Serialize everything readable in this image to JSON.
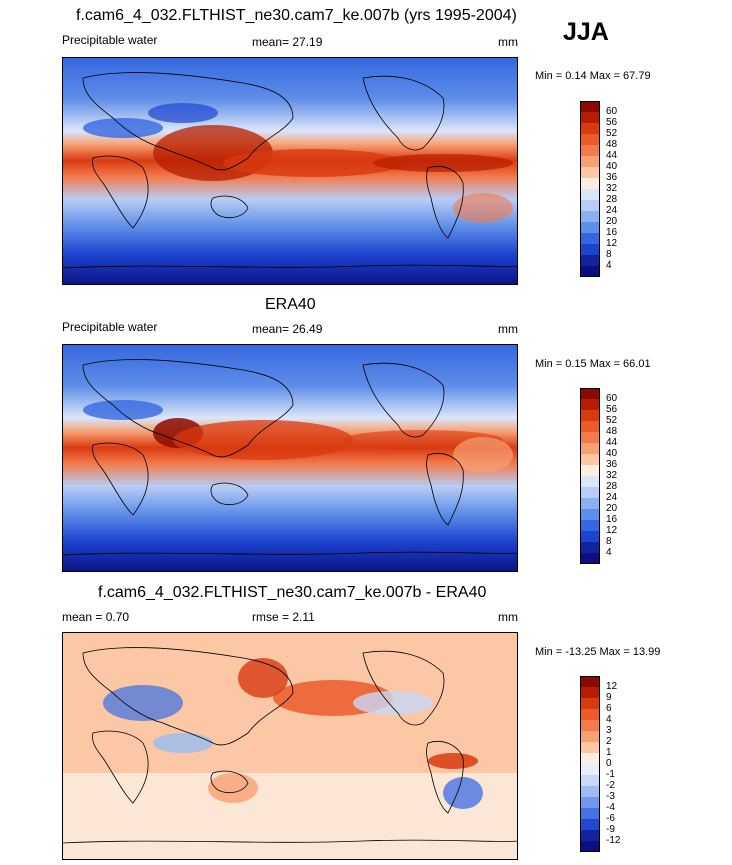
{
  "season": "JJA",
  "panels": [
    {
      "title": "f.cam6_4_032.FLTHIST_ne30.cam7_ke.007b (yrs 1995-2004)",
      "left_label": "Precipitable water",
      "stat_label": "mean=  27.19",
      "units": "mm",
      "minmax": "Min =   0.14 Max =  67.79",
      "colorbar": {
        "levels": [
          "60",
          "56",
          "52",
          "48",
          "44",
          "40",
          "36",
          "32",
          "28",
          "24",
          "20",
          "16",
          "12",
          "8",
          "4"
        ],
        "colors": [
          "#8b0a00",
          "#b61d00",
          "#d93a10",
          "#ea5a2a",
          "#f27a4c",
          "#f7a074",
          "#fbc7a4",
          "#fdeee2",
          "#dbe6fa",
          "#b8cdf6",
          "#8ab0f0",
          "#5e8ee8",
          "#3568e0",
          "#1d44d0",
          "#14229e",
          "#0b1080"
        ]
      }
    },
    {
      "title": "ERA40",
      "left_label": "Precipitable water",
      "stat_label": "mean=  26.49",
      "units": "mm",
      "minmax": "Min =   0.15 Max =  66.01",
      "colorbar": {
        "levels": [
          "60",
          "56",
          "52",
          "48",
          "44",
          "40",
          "36",
          "32",
          "28",
          "24",
          "20",
          "16",
          "12",
          "8",
          "4"
        ],
        "colors": [
          "#8b0a00",
          "#b61d00",
          "#d93a10",
          "#ea5a2a",
          "#f27a4c",
          "#f7a074",
          "#fbc7a4",
          "#fdeee2",
          "#dbe6fa",
          "#b8cdf6",
          "#8ab0f0",
          "#5e8ee8",
          "#3568e0",
          "#1d44d0",
          "#14229e",
          "#0b1080"
        ]
      }
    },
    {
      "title": "f.cam6_4_032.FLTHIST_ne30.cam7_ke.007b - ERA40",
      "left_label": "mean =   0.70",
      "stat_label": "rmse =   2.11",
      "units": "mm",
      "minmax": "Min = -13.25 Max =  13.99",
      "colorbar": {
        "levels": [
          "12",
          "9",
          "6",
          "4",
          "3",
          "2",
          "1",
          "0",
          "-1",
          "-2",
          "-3",
          "-4",
          "-6",
          "-9",
          "-12"
        ],
        "colors": [
          "#8b0a00",
          "#b61d00",
          "#d93a10",
          "#ea5a2a",
          "#f27a4c",
          "#f7a074",
          "#fbc7a4",
          "#fdeee2",
          "#e8eefb",
          "#c9d8f6",
          "#9fbcf1",
          "#7098ea",
          "#4574e2",
          "#2048d3",
          "#14229e",
          "#0b1080"
        ]
      }
    }
  ]
}
